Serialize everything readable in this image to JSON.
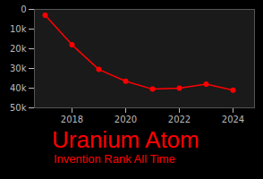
{
  "chart_data": {
    "type": "line",
    "title": "Uranium Atom",
    "subtitle": "Invention Rank All Time",
    "x": [
      2017,
      2018,
      2019,
      2020,
      2021,
      2022,
      2023,
      2024
    ],
    "values": [
      3000,
      18000,
      30500,
      36500,
      40500,
      40000,
      38000,
      41000
    ],
    "color": "#ff0000",
    "marker": "circle",
    "xlim": [
      2016.6,
      2024.8
    ],
    "xticks": [
      2018,
      2020,
      2022,
      2024
    ],
    "ylim": [
      0,
      50000
    ],
    "yticks": [
      0,
      {
        "value": 10000,
        "label": "10k"
      },
      {
        "value": 20000,
        "label": "20k"
      },
      {
        "value": 30000,
        "label": "30k"
      },
      {
        "value": 40000,
        "label": "40k"
      },
      {
        "value": 50000,
        "label": "50k"
      }
    ]
  }
}
